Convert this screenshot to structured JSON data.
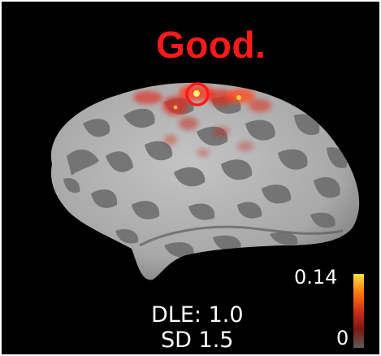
{
  "annotation": {
    "label": "Good.",
    "color": "#ff1a1a"
  },
  "metrics": {
    "dle": "DLE: 1.0",
    "sd": "SD 1.5"
  },
  "colorbar": {
    "max_label": "0.14",
    "min_label": "0",
    "max_value": 0.14,
    "min_value": 0,
    "colors": [
      "#5a5a5a",
      "#7a1a10",
      "#d0301a",
      "#ff7a10",
      "#ffe040"
    ]
  },
  "surface": {
    "base_color": "#b4b4b4",
    "sulci_color": "#6e6e6e",
    "activation_color": "#e02a1a",
    "peak_color": "#fff07a"
  }
}
